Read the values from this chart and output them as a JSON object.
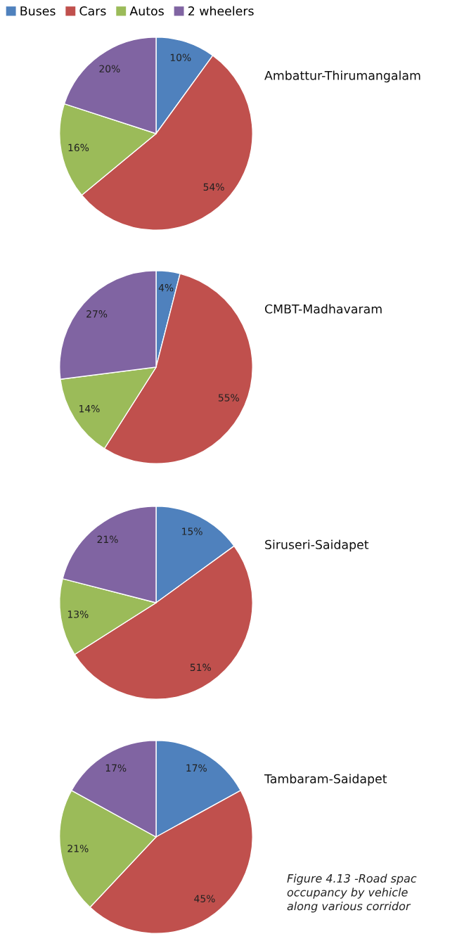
{
  "chart_data": [
    {
      "type": "pie",
      "title": "Ambattur-Thirumangalam",
      "categories": [
        "Buses",
        "Cars",
        "Autos",
        "2 wheelers"
      ],
      "values": [
        10,
        54,
        16,
        20
      ],
      "value_labels": [
        "10%",
        "54%",
        "16%",
        "20%"
      ],
      "colors": [
        "#4f81bd",
        "#c0504d",
        "#9bbb59",
        "#8064a2"
      ],
      "legend": "top left"
    },
    {
      "type": "pie",
      "title": "CMBT-Madhavaram",
      "categories": [
        null,
        null,
        null,
        null
      ],
      "values": [
        4,
        55,
        14,
        27
      ],
      "value_labels": [
        "4%",
        "55%",
        "14%",
        "27%"
      ],
      "colors": [
        "#4f81bd",
        "#c0504d",
        "#9bbb59",
        "#8064a2"
      ]
    },
    {
      "type": "pie",
      "title": "Siruseri-Saidapet",
      "categories": [
        null,
        null,
        null,
        null
      ],
      "values": [
        15,
        51,
        13,
        21
      ],
      "value_labels": [
        "15%",
        "51%",
        "13%",
        "21%"
      ],
      "colors": [
        "#4f81bd",
        "#c0504d",
        "#9bbb59",
        "#8064a2"
      ]
    },
    {
      "type": "pie",
      "title": "Tambaram-Saidapet",
      "categories": [
        null,
        null,
        null,
        null
      ],
      "values": [
        17,
        45,
        21,
        17
      ],
      "value_labels": [
        "17%",
        "45%",
        "21%",
        "17%"
      ],
      "colors": [
        "#4f81bd",
        "#c0504d",
        "#9bbb59",
        "#8064a2"
      ],
      "annotations": [
        "Figure 4.13 -Road spac\noccupancy by vehicle\nalong various corridor"
      ]
    }
  ]
}
